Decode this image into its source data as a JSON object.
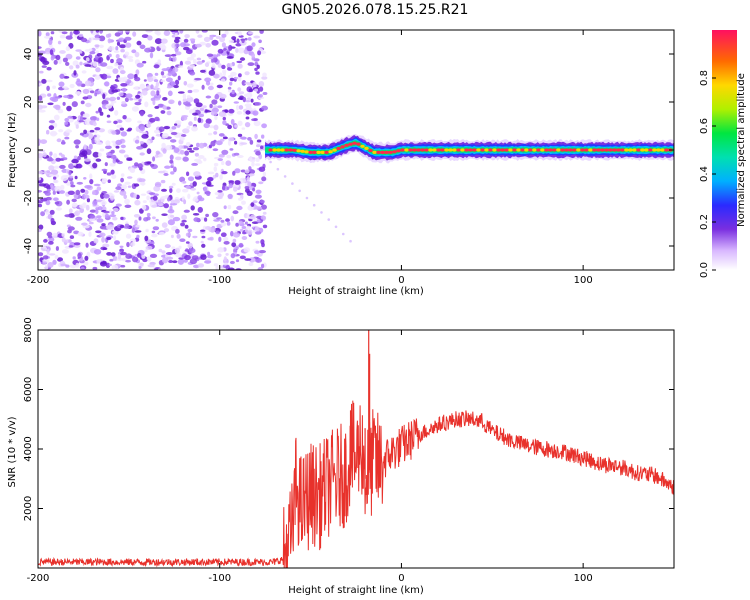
{
  "title": "GN05.2026.078.15.25.R21",
  "colors": {
    "axis": "#000000",
    "snr_line": "#e8312b",
    "noise": "#8a2be2"
  },
  "chart_data": [
    {
      "type": "heatmap",
      "title": "GN05.2026.078.15.25.R21",
      "xlabel": "Height of straight line (km)",
      "ylabel": "Frequency (Hz)",
      "xlim": [
        -200,
        150
      ],
      "ylim": [
        -50,
        50
      ],
      "xticks": [
        -200,
        -100,
        0,
        100
      ],
      "xtick_labels": [
        "-200",
        "-100",
        "0",
        "100"
      ],
      "yticks": [
        -40,
        -20,
        0,
        20,
        40
      ],
      "ytick_labels": [
        "-40",
        "-20",
        "0",
        "20",
        "40"
      ],
      "noise_region_x": [
        -200,
        -75
      ],
      "signal_start_x": -75,
      "signal_track": [
        {
          "x": -74,
          "freq": 0
        },
        {
          "x": -60,
          "freq": 0
        },
        {
          "x": -50,
          "freq": -1
        },
        {
          "x": -40,
          "freq": -1
        },
        {
          "x": -30,
          "freq": 2
        },
        {
          "x": -25,
          "freq": 3
        },
        {
          "x": -20,
          "freq": 1
        },
        {
          "x": -15,
          "freq": -1
        },
        {
          "x": -5,
          "freq": -1
        },
        {
          "x": 0,
          "freq": 0
        },
        {
          "x": 20,
          "freq": 0
        },
        {
          "x": 50,
          "freq": 0
        },
        {
          "x": 80,
          "freq": 0
        },
        {
          "x": 120,
          "freq": 0
        },
        {
          "x": 150,
          "freq": 0
        }
      ],
      "colorbar": {
        "label": "Normalized spectral amplitude",
        "range": [
          0,
          1
        ],
        "ticks": [
          0.0,
          0.2,
          0.4,
          0.6,
          0.8
        ],
        "tick_labels": [
          "0.0",
          "0.2",
          "0.4",
          "0.6",
          "0.8"
        ]
      }
    },
    {
      "type": "line",
      "xlabel": "Height of straight line (km)",
      "ylabel": "SNR (10 * v/v)",
      "xlim": [
        -200,
        150
      ],
      "ylim": [
        0,
        8000
      ],
      "xticks": [
        -200,
        -100,
        0,
        100
      ],
      "xtick_labels": [
        "-200",
        "-100",
        "0",
        "100"
      ],
      "yticks": [
        2000,
        4000,
        6000,
        8000
      ],
      "ytick_labels": [
        "2000",
        "4000",
        "6000",
        "8000"
      ],
      "series": [
        {
          "name": "SNR",
          "x": [
            -200,
            -180,
            -160,
            -140,
            -120,
            -100,
            -80,
            -70,
            -65,
            -60,
            -58,
            -55,
            -50,
            -45,
            -40,
            -35,
            -30,
            -28,
            -25,
            -22,
            -20,
            -18,
            -15,
            -12,
            -10,
            -5,
            0,
            5,
            10,
            20,
            30,
            40,
            45,
            50,
            60,
            70,
            80,
            90,
            100,
            110,
            120,
            130,
            140,
            150
          ],
          "values": [
            200,
            200,
            200,
            200,
            200,
            200,
            200,
            200,
            300,
            1200,
            2800,
            2000,
            2500,
            2400,
            2800,
            3000,
            3200,
            4000,
            3600,
            4300,
            3000,
            3200,
            3700,
            3400,
            3600,
            3900,
            4100,
            4300,
            4500,
            4800,
            5000,
            5000,
            4900,
            4600,
            4300,
            4100,
            4000,
            3900,
            3700,
            3500,
            3400,
            3200,
            3100,
            2700
          ]
        }
      ]
    }
  ]
}
